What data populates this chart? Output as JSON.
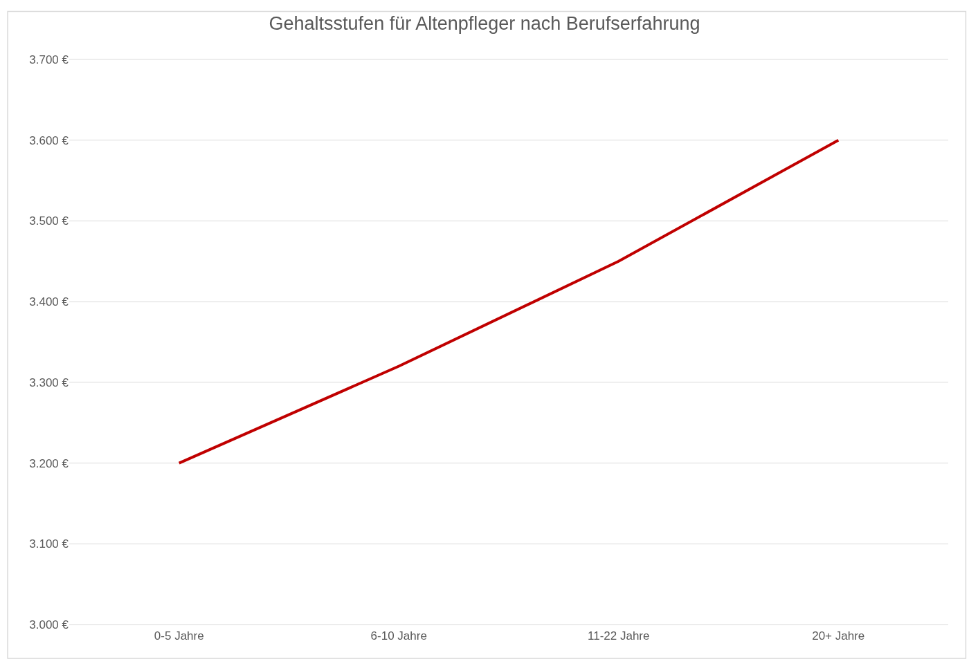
{
  "chart_data": {
    "type": "line",
    "title": "Gehaltsstufen für Altenpfleger nach Berufserfahrung",
    "categories": [
      "0-5 Jahre",
      "6-10 Jahre",
      "11-22 Jahre",
      "20+ Jahre"
    ],
    "series": [
      {
        "color": "#c00000",
        "values": [
          3200,
          3320,
          3450,
          3600
        ]
      }
    ],
    "ylim": [
      3000,
      3700
    ],
    "yticks": [
      {
        "value": 3000,
        "label": "3.000 €"
      },
      {
        "value": 3100,
        "label": "3.100 €"
      },
      {
        "value": 3200,
        "label": "3.200 €"
      },
      {
        "value": 3300,
        "label": "3.300 €"
      },
      {
        "value": 3400,
        "label": "3.400 €"
      },
      {
        "value": 3500,
        "label": "3.500 €"
      },
      {
        "value": 3600,
        "label": "3.600 €"
      },
      {
        "value": 3700,
        "label": "3.700 €"
      }
    ],
    "grid": "y",
    "marker": "none",
    "line_style": "solid"
  }
}
